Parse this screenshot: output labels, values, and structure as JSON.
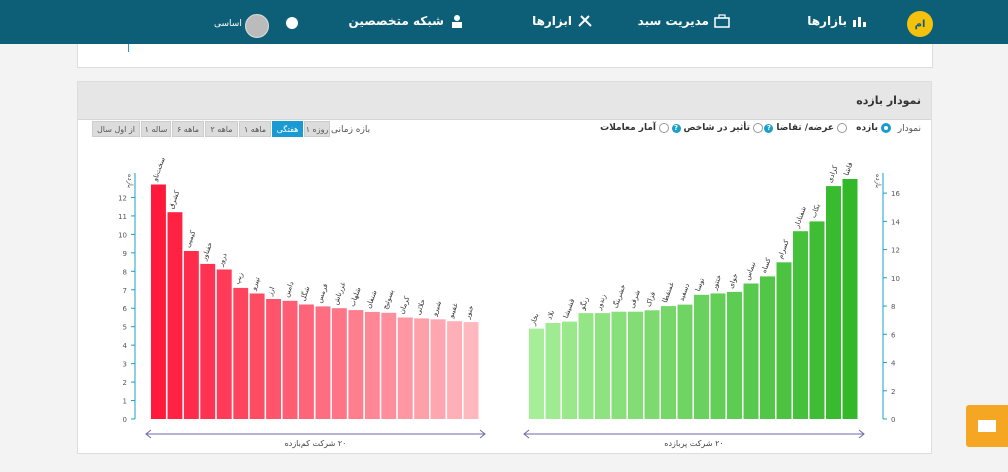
{
  "nav": {
    "markets": "بازارها",
    "portfolio": "مدیریت سبد",
    "tools": "ابزارها",
    "experts": "شبکه متخصصین",
    "user": "اساسی"
  },
  "card": {
    "title": "نمودار بازده"
  },
  "chart_options": {
    "label": "نمودار",
    "options": [
      "بازده",
      "عرضه/ تقاضا",
      "تأثیر در شاخص",
      "آمار معاملات"
    ],
    "selected": "بازده"
  },
  "period": {
    "label": "بازه زمانی",
    "buttons": [
      "۱ روزه",
      "هفتگی",
      "۱ ماهه",
      "۲ ماهه",
      "۶ ماهه",
      "۱ ساله",
      "از اول سال"
    ],
    "selected": "هفتگی"
  },
  "colors": {
    "header": "#0d5f78",
    "loss": "#ff2040",
    "gain": "#33b82a",
    "axis": "#18a0c7"
  },
  "chart_data": [
    {
      "type": "bar",
      "caption": "۲۰ شرکت کم‌بازده",
      "ylabel": "بازده",
      "ylim": [
        0,
        13
      ],
      "yticks": [
        0,
        1,
        2,
        3,
        4,
        5,
        6,
        7,
        8,
        9,
        10,
        11,
        12
      ],
      "categories": [
        "سخت‌ناو",
        "کشرق",
        "کیمیی",
        "خفناور",
        "درور",
        "زیپ",
        "تپیرو",
        "ارز",
        "دامین",
        "شگل",
        "قرمس",
        "غزرناش",
        "شلهاب",
        "شنفان",
        "بسوئیج",
        "کرمان",
        "خلائی",
        "شیرو",
        "غفیبو",
        "خنور"
      ],
      "values": [
        12.7,
        11.2,
        9.1,
        8.4,
        8.1,
        7.1,
        6.8,
        6.5,
        6.4,
        6.2,
        6.1,
        6.0,
        5.9,
        5.8,
        5.75,
        5.5,
        5.45,
        5.4,
        5.3,
        5.25
      ]
    },
    {
      "type": "bar",
      "caption": "۲۰ شرکت پربازده",
      "ylabel": "بازده",
      "ylim": [
        0,
        17
      ],
      "yticks": [
        0,
        2,
        4,
        6,
        8,
        10,
        12,
        14,
        16
      ],
      "categories": [
        "بخار",
        "نلاد",
        "قشیشا",
        "زنگو",
        "زندور",
        "خشرینگ",
        "شرقی",
        "فزاک",
        "غمنقطا",
        "دسفید",
        "توسا",
        "ختتور",
        "خوای",
        "نیماس",
        "کساه",
        "کسرام",
        "شفنادار",
        "بکاب",
        "کزادی",
        "قاشا"
      ],
      "values": [
        6.4,
        6.8,
        6.9,
        7.5,
        7.5,
        7.6,
        7.6,
        7.7,
        8.0,
        8.1,
        8.8,
        8.9,
        9.0,
        9.6,
        10.1,
        11.1,
        13.3,
        14.0,
        16.5,
        17.0
      ]
    }
  ]
}
